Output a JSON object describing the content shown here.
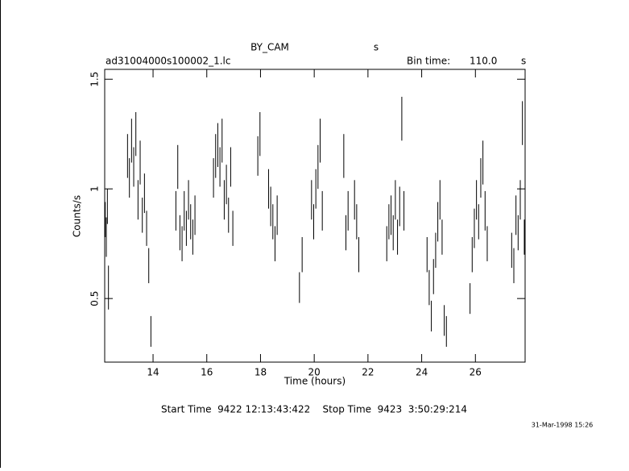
{
  "chart_data": {
    "type": "errorbar",
    "title": "BY_CAM",
    "title_unit": "s",
    "file_label": "ad31004000s100002_1.lc",
    "bin_label": "Bin time:",
    "bin_value": "110.0",
    "bin_unit": "s",
    "xlabel": "Time (hours)",
    "ylabel": "Counts/s",
    "footer": "Start Time  9422 12:13:43:422    Stop Time  9423  3:50:29:214",
    "date": "31-Mar-1998 15:26",
    "color": "#000000",
    "xlim": [
      12.2,
      27.85
    ],
    "ylim": [
      0.21,
      1.545
    ],
    "xticks": [
      14,
      16,
      18,
      20,
      22,
      24,
      26
    ],
    "yticks": [
      0.5,
      1,
      1.5
    ],
    "x": [
      12.22,
      12.26,
      12.3,
      12.34,
      13.05,
      13.12,
      13.2,
      13.28,
      13.36,
      13.44,
      13.52,
      13.6,
      13.68,
      13.76,
      13.84,
      13.92,
      14.85,
      14.92,
      15.0,
      15.08,
      15.16,
      15.24,
      15.32,
      15.4,
      15.48,
      15.56,
      16.25,
      16.33,
      16.41,
      16.49,
      16.57,
      16.65,
      16.73,
      16.81,
      16.89,
      16.97,
      17.9,
      17.98,
      18.3,
      18.38,
      18.46,
      18.54,
      18.62,
      19.45,
      19.55,
      19.9,
      19.98,
      20.06,
      20.14,
      20.22,
      20.3,
      21.1,
      21.18,
      21.26,
      21.5,
      21.58,
      21.66,
      22.7,
      22.78,
      22.86,
      22.94,
      23.02,
      23.1,
      23.18,
      23.26,
      23.34,
      24.2,
      24.28,
      24.36,
      24.44,
      24.52,
      24.6,
      24.68,
      24.76,
      24.84,
      24.92,
      25.8,
      25.88,
      25.96,
      26.04,
      26.12,
      26.2,
      26.28,
      26.36,
      26.44,
      27.35,
      27.43,
      27.51,
      27.59,
      27.67,
      27.75,
      27.82
    ],
    "values": [
      0.86,
      0.78,
      0.92,
      0.55,
      1.15,
      1.05,
      1.22,
      1.1,
      1.25,
      0.95,
      1.12,
      0.88,
      0.98,
      0.82,
      0.65,
      0.35,
      0.9,
      1.1,
      0.8,
      0.75,
      0.9,
      0.82,
      0.95,
      0.85,
      0.78,
      0.88,
      1.05,
      1.15,
      1.2,
      1.1,
      1.22,
      0.95,
      1.02,
      0.88,
      1.1,
      0.82,
      1.15,
      1.25,
      1.0,
      0.92,
      0.85,
      0.75,
      0.88,
      0.55,
      0.7,
      0.95,
      0.85,
      1.0,
      1.1,
      1.22,
      0.9,
      1.15,
      0.8,
      0.9,
      0.95,
      0.85,
      0.7,
      0.75,
      0.85,
      0.88,
      0.8,
      0.95,
      0.78,
      0.92,
      1.32,
      0.9,
      0.7,
      0.55,
      0.42,
      0.6,
      0.72,
      0.85,
      0.95,
      0.78,
      0.4,
      0.35,
      0.5,
      0.7,
      0.82,
      0.95,
      0.85,
      1.05,
      1.12,
      0.9,
      0.75,
      0.72,
      0.65,
      0.88,
      0.8,
      0.95,
      1.3,
      0.78
    ],
    "errors": [
      0.08,
      0.09,
      0.08,
      0.1,
      0.1,
      0.09,
      0.1,
      0.09,
      0.1,
      0.09,
      0.1,
      0.08,
      0.09,
      0.08,
      0.08,
      0.07,
      0.09,
      0.1,
      0.08,
      0.08,
      0.09,
      0.08,
      0.09,
      0.08,
      0.08,
      0.09,
      0.09,
      0.1,
      0.1,
      0.09,
      0.1,
      0.09,
      0.09,
      0.08,
      0.09,
      0.08,
      0.09,
      0.1,
      0.09,
      0.09,
      0.08,
      0.08,
      0.09,
      0.07,
      0.08,
      0.09,
      0.08,
      0.09,
      0.1,
      0.1,
      0.09,
      0.1,
      0.08,
      0.09,
      0.09,
      0.08,
      0.08,
      0.08,
      0.08,
      0.09,
      0.08,
      0.09,
      0.08,
      0.09,
      0.1,
      0.09,
      0.08,
      0.08,
      0.07,
      0.08,
      0.08,
      0.09,
      0.09,
      0.08,
      0.07,
      0.07,
      0.07,
      0.08,
      0.09,
      0.09,
      0.08,
      0.09,
      0.1,
      0.09,
      0.08,
      0.08,
      0.08,
      0.09,
      0.08,
      0.09,
      0.1,
      0.08
    ]
  }
}
